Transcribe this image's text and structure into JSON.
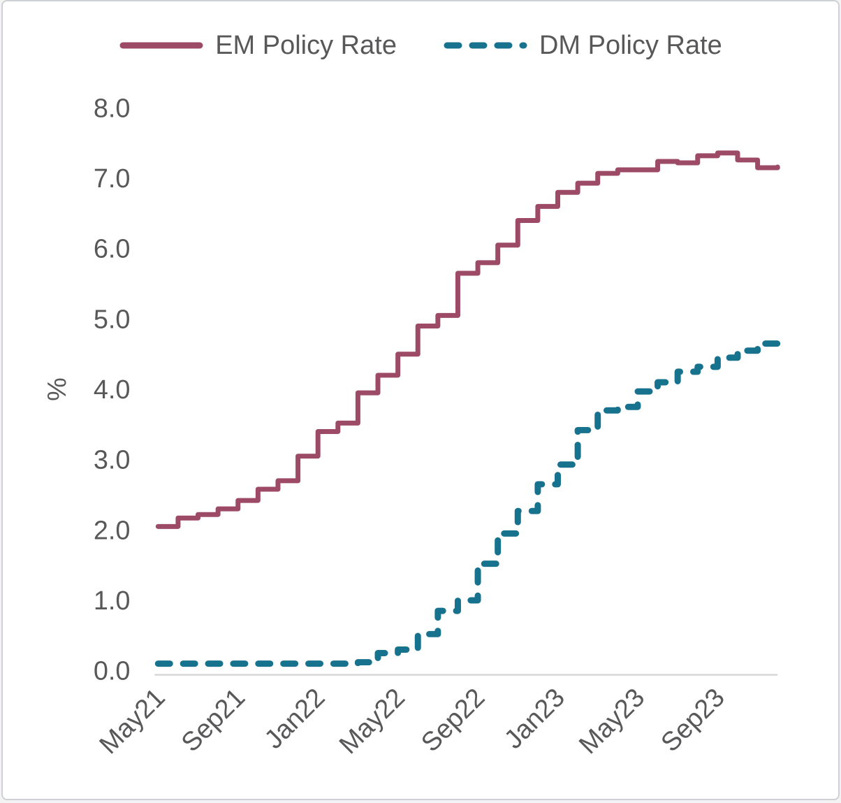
{
  "legend": {
    "items": [
      {
        "id": "em",
        "label": "EM Policy Rate",
        "color": "#9C4A66",
        "line_style": "solid"
      },
      {
        "id": "dm",
        "label": "DM Policy Rate",
        "color": "#17728E",
        "line_style": "dashed"
      }
    ]
  },
  "chart_data": {
    "type": "line",
    "title": "",
    "xlabel": "",
    "ylabel": "%",
    "ylim": [
      0,
      8
    ],
    "ytick_labels": [
      "0.0",
      "1.0",
      "2.0",
      "3.0",
      "4.0",
      "5.0",
      "6.0",
      "7.0",
      "8.0"
    ],
    "x_categories": [
      "May21",
      "Jun21",
      "Jul21",
      "Aug21",
      "Sep21",
      "Oct21",
      "Nov21",
      "Dec21",
      "Jan22",
      "Feb22",
      "Mar22",
      "Apr22",
      "May22",
      "Jun22",
      "Jul22",
      "Aug22",
      "Sep22",
      "Oct22",
      "Nov22",
      "Dec22",
      "Jan23",
      "Feb23",
      "Mar23",
      "Apr23",
      "May23",
      "Jun23",
      "Jul23",
      "Aug23",
      "Sep23",
      "Oct23",
      "Nov23",
      "Dec23"
    ],
    "x_tick_positions": [
      0,
      4,
      8,
      12,
      16,
      20,
      24,
      28
    ],
    "x_tick_labels": [
      "May21",
      "Sep21",
      "Jan22",
      "May22",
      "Sep22",
      "Jan23",
      "May23",
      "Sep23"
    ],
    "grid": false,
    "legend_position": "top",
    "line_interpolation": "step-after",
    "series": [
      {
        "name": "EM Policy Rate",
        "color": "#9C4A66",
        "dashed": false,
        "values": [
          2.05,
          2.17,
          2.22,
          2.3,
          2.42,
          2.58,
          2.7,
          3.05,
          3.4,
          3.52,
          3.95,
          4.2,
          4.5,
          4.9,
          5.05,
          5.65,
          5.8,
          6.05,
          6.4,
          6.6,
          6.8,
          6.93,
          7.07,
          7.12,
          7.12,
          7.24,
          7.22,
          7.32,
          7.36,
          7.26,
          7.15,
          7.16
        ]
      },
      {
        "name": "DM Policy Rate",
        "color": "#17728E",
        "dashed": true,
        "values": [
          0.1,
          0.1,
          0.1,
          0.1,
          0.1,
          0.1,
          0.1,
          0.1,
          0.1,
          0.1,
          0.12,
          0.25,
          0.3,
          0.52,
          0.85,
          1.0,
          1.52,
          1.95,
          2.27,
          2.65,
          2.93,
          3.42,
          3.7,
          3.75,
          3.97,
          4.1,
          4.25,
          4.32,
          4.45,
          4.55,
          4.65,
          4.67
        ]
      }
    ],
    "axis_color": "#d7d7d7",
    "tick_text_color": "#58585a"
  }
}
